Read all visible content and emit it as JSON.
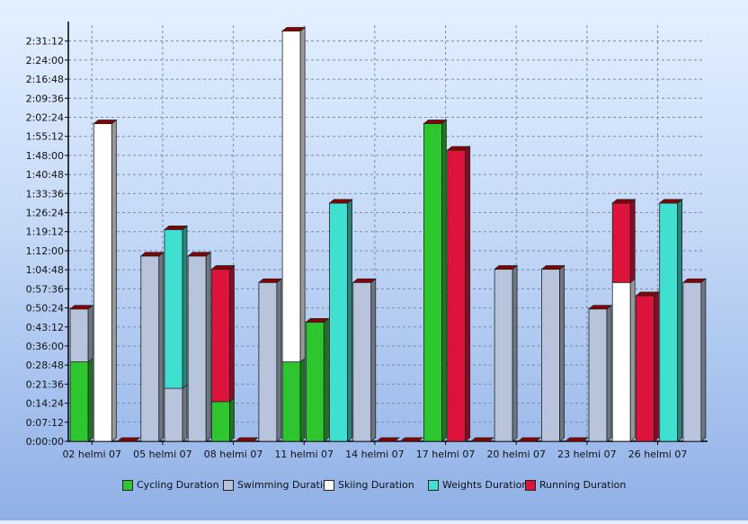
{
  "chart_data": {
    "type": "bar",
    "stacked": true,
    "three_d": true,
    "title": "",
    "xlabel": "",
    "ylabel": "",
    "y_unit": "h:mm:ss",
    "ylim_seconds": [
      0,
      9432
    ],
    "y_ticks": [
      "0:00:00",
      "0:07:12",
      "0:14:24",
      "0:21:36",
      "0:28:48",
      "0:36:00",
      "0:43:12",
      "0:50:24",
      "0:57:36",
      "1:04:48",
      "1:12:00",
      "1:19:12",
      "1:26:24",
      "1:33:36",
      "1:40:48",
      "1:48:00",
      "1:55:12",
      "2:02:24",
      "2:09:36",
      "2:16:48",
      "2:24:00",
      "2:31:12"
    ],
    "x_tick_labels": [
      "02 helmi 07",
      "05 helmi 07",
      "08 helmi 07",
      "11 helmi 07",
      "14 helmi 07",
      "17 helmi 07",
      "20 helmi 07",
      "23 helmi 07",
      "26 helmi 07"
    ],
    "grid": true,
    "legend_position": "bottom",
    "series": [
      {
        "name": "Cycling Duration",
        "color": "#2ec62e"
      },
      {
        "name": "Swimming Duration",
        "color": "#b7c4dc"
      },
      {
        "name": "Skiing Duration",
        "color": "#ffffff"
      },
      {
        "name": "Weights Duration",
        "color": "#3fe0d0"
      },
      {
        "name": "Running Duration",
        "color": "#dc143c"
      }
    ],
    "bars": [
      {
        "date": "01 helmi 07",
        "segments": [
          {
            "series": "Cycling Duration",
            "value": "0:30:00"
          },
          {
            "series": "Swimming Duration",
            "value": "0:20:00"
          }
        ]
      },
      {
        "date": "02 helmi 07",
        "segments": [
          {
            "series": "Skiing Duration",
            "value": "2:00:00"
          }
        ]
      },
      {
        "date": "03 helmi 07",
        "segments": []
      },
      {
        "date": "04 helmi 07",
        "segments": [
          {
            "series": "Swimming Duration",
            "value": "1:10:00"
          }
        ]
      },
      {
        "date": "05 helmi 07",
        "segments": [
          {
            "series": "Swimming Duration",
            "value": "0:20:00"
          },
          {
            "series": "Weights Duration",
            "value": "1:00:00"
          }
        ]
      },
      {
        "date": "06 helmi 07",
        "segments": [
          {
            "series": "Swimming Duration",
            "value": "1:10:00"
          }
        ]
      },
      {
        "date": "07 helmi 07",
        "segments": [
          {
            "series": "Cycling Duration",
            "value": "0:15:00"
          },
          {
            "series": "Running Duration",
            "value": "0:50:00"
          }
        ]
      },
      {
        "date": "08 helmi 07",
        "segments": []
      },
      {
        "date": "09 helmi 07",
        "segments": [
          {
            "series": "Swimming Duration",
            "value": "1:00:00"
          }
        ]
      },
      {
        "date": "10 helmi 07",
        "segments": [
          {
            "series": "Cycling Duration",
            "value": "0:30:00"
          },
          {
            "series": "Skiing Duration",
            "value": "2:05:00"
          }
        ]
      },
      {
        "date": "11 helmi 07",
        "segments": [
          {
            "series": "Cycling Duration",
            "value": "0:45:00"
          }
        ]
      },
      {
        "date": "12 helmi 07",
        "segments": [
          {
            "series": "Weights Duration",
            "value": "1:30:00"
          }
        ]
      },
      {
        "date": "13 helmi 07",
        "segments": [
          {
            "series": "Swimming Duration",
            "value": "1:00:00"
          }
        ]
      },
      {
        "date": "14 helmi 07",
        "segments": []
      },
      {
        "date": "15 helmi 07",
        "segments": []
      },
      {
        "date": "16 helmi 07",
        "segments": [
          {
            "series": "Cycling Duration",
            "value": "2:00:00"
          }
        ]
      },
      {
        "date": "17 helmi 07",
        "segments": [
          {
            "series": "Running Duration",
            "value": "1:50:00"
          }
        ]
      },
      {
        "date": "18 helmi 07",
        "segments": []
      },
      {
        "date": "19 helmi 07",
        "segments": [
          {
            "series": "Swimming Duration",
            "value": "1:05:00"
          }
        ]
      },
      {
        "date": "20 helmi 07",
        "segments": []
      },
      {
        "date": "21 helmi 07",
        "segments": [
          {
            "series": "Swimming Duration",
            "value": "1:05:00"
          }
        ]
      },
      {
        "date": "22 helmi 07",
        "segments": []
      },
      {
        "date": "23 helmi 07",
        "segments": [
          {
            "series": "Swimming Duration",
            "value": "0:50:00"
          }
        ]
      },
      {
        "date": "24 helmi 07",
        "segments": [
          {
            "series": "Skiing Duration",
            "value": "1:00:00"
          },
          {
            "series": "Running Duration",
            "value": "0:30:00"
          }
        ]
      },
      {
        "date": "25 helmi 07",
        "segments": [
          {
            "series": "Running Duration",
            "value": "0:55:00"
          }
        ]
      },
      {
        "date": "26 helmi 07",
        "segments": [
          {
            "series": "Weights Duration",
            "value": "1:30:00"
          }
        ]
      },
      {
        "date": "27 helmi 07",
        "segments": [
          {
            "series": "Swimming Duration",
            "value": "1:00:00"
          }
        ]
      }
    ]
  }
}
